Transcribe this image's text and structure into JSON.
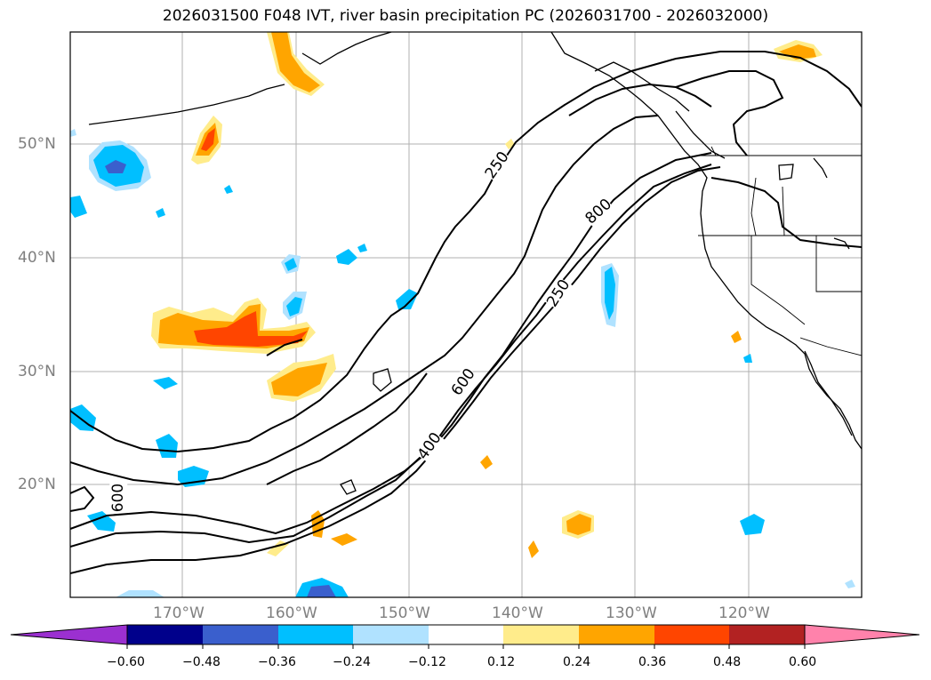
{
  "title": "2026031500 F048 IVT, river basin precipitation PC (2026031700 - 2026032000)",
  "lat_labels": [
    "50°N",
    "40°N",
    "30°N",
    "20°N"
  ],
  "lon_labels": [
    "170°W",
    "160°W",
    "150°W",
    "140°W",
    "130°W",
    "120°W"
  ],
  "ivt_contour_labels": [
    "250",
    "800",
    "250",
    "600",
    "400",
    "600"
  ],
  "colorbar": {
    "ticks": [
      "−0.60",
      "−0.48",
      "−0.36",
      "−0.24",
      "−0.12",
      "0.12",
      "0.24",
      "0.36",
      "0.48",
      "0.60"
    ],
    "colors": [
      "#9b30d0",
      "#00008b",
      "#3a5fcd",
      "#00bfff",
      "#b0e2ff",
      "#ffffff",
      "#ffec8b",
      "#ffa500",
      "#ff4500",
      "#b22222",
      "#ff82ab"
    ]
  }
}
